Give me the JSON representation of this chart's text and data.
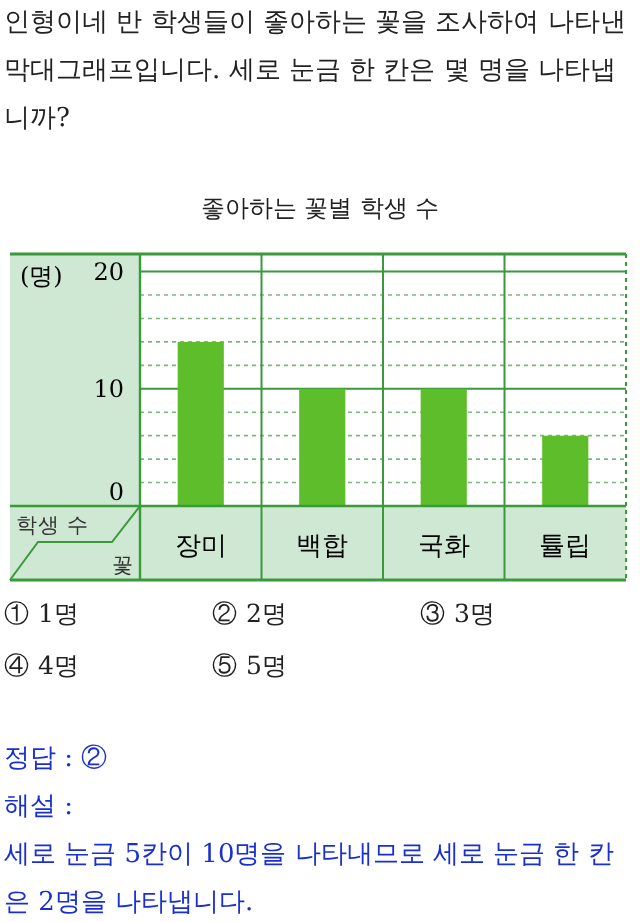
{
  "chart_data": {
    "type": "bar",
    "title": "좋아하는 꽃별 학생 수",
    "ylabel": "학생 수",
    "xlabel": "꽃",
    "categories": [
      "장미",
      "백합",
      "국화",
      "튤립"
    ],
    "values": [
      14,
      10,
      10,
      6
    ],
    "color": "#5dbd2b",
    "ylim": [
      0,
      21.5
    ],
    "yticks": [
      0,
      {
        "value": 2,
        "label": null
      },
      {
        "value": 4,
        "label": null
      },
      {
        "value": 6,
        "label": null
      },
      {
        "value": 8,
        "label": null
      },
      10,
      {
        "value": 12,
        "label": null
      },
      {
        "value": 14,
        "label": null
      },
      {
        "value": 16,
        "label": null
      },
      {
        "value": 18,
        "label": null
      },
      20
    ],
    "grid": "y",
    "annotations": [
      "인형이네 반 학생들이 좋아하는 꽃을 조사하여 나타낸 막대그래프입니다. 세로 눈금 한 칸은 몇 명을 나타냅니까?",
      "(명)",
      "① 1명",
      "② 2명",
      "③ 3명",
      "④ 4명",
      "⑤ 5명",
      "정답 : ②",
      "해설 :",
      "세로 눈금 5칸이 10명을 나타내므로 세로 눈금 한 칸은 2명을 나타냅니다."
    ]
  }
}
